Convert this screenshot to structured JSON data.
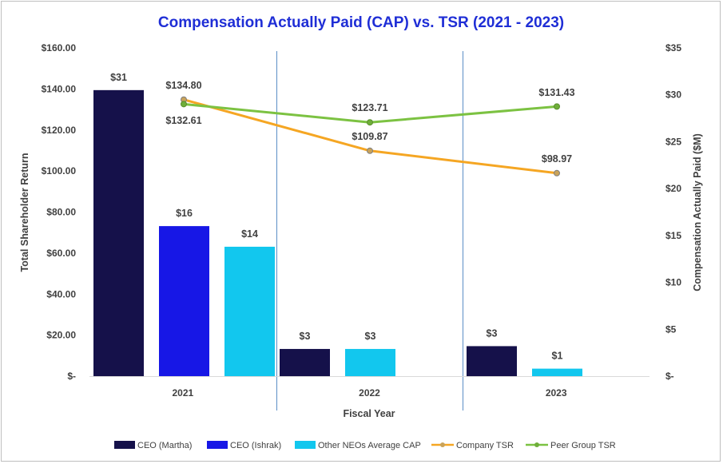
{
  "chart_data": {
    "type": "bar+line",
    "title": "Compensation Actually Paid (CAP) vs. TSR (2021 - 2023)",
    "xlabel": "Fiscal Year",
    "ylabel_left": "Total Shareholder Return",
    "ylabel_right": "Compensation Actually Paid ($M)",
    "categories": [
      "2021",
      "2022",
      "2023"
    ],
    "ylim_left": [
      0,
      160
    ],
    "ylim_right": [
      0,
      35
    ],
    "left_ticks": [
      {
        "value": 0,
        "label": "$-"
      },
      {
        "value": 20,
        "label": "$20.00"
      },
      {
        "value": 40,
        "label": "$40.00"
      },
      {
        "value": 60,
        "label": "$60.00"
      },
      {
        "value": 80,
        "label": "$80.00"
      },
      {
        "value": 100,
        "label": "$100.00"
      },
      {
        "value": 120,
        "label": "$120.00"
      },
      {
        "value": 140,
        "label": "$140.00"
      },
      {
        "value": 160,
        "label": "$160.00"
      }
    ],
    "right_ticks": [
      {
        "value": 0,
        "label": "$-"
      },
      {
        "value": 5,
        "label": "$5"
      },
      {
        "value": 10,
        "label": "$10"
      },
      {
        "value": 15,
        "label": "$15"
      },
      {
        "value": 20,
        "label": "$20"
      },
      {
        "value": 25,
        "label": "$25"
      },
      {
        "value": 30,
        "label": "$30"
      },
      {
        "value": 35,
        "label": "$35"
      }
    ],
    "bar_series": [
      {
        "name": "CEO (Martha)",
        "color": "#15114a",
        "bars": [
          {
            "category": 0,
            "value": 30.5,
            "label": "$31"
          },
          {
            "category": 1,
            "value": 2.9,
            "label": "$3"
          },
          {
            "category": 2,
            "value": 3.2,
            "label": "$3"
          }
        ]
      },
      {
        "name": "CEO (Ishrak)",
        "color": "#1717e6",
        "bars": [
          {
            "category": 0,
            "value": 16.0,
            "label": "$16"
          }
        ]
      },
      {
        "name": "Other NEOs Average CAP",
        "color": "#12c7ee",
        "bars": [
          {
            "category": 0,
            "value": 13.8,
            "label": "$14"
          },
          {
            "category": 1,
            "value": 2.9,
            "label": "$3"
          },
          {
            "category": 2,
            "value": 0.8,
            "label": "$1"
          }
        ]
      }
    ],
    "line_series": [
      {
        "name": "Company TSR",
        "color": "#f5a623",
        "values": [
          134.8,
          109.87,
          98.97
        ],
        "labels": [
          "$134.80",
          "$109.87",
          "$98.97"
        ]
      },
      {
        "name": "Peer Group TSR",
        "color": "#7cc242",
        "values": [
          132.61,
          123.71,
          131.43
        ],
        "labels": [
          "$132.61",
          "$123.71",
          "$131.43"
        ]
      }
    ],
    "legend": [
      "CEO (Martha)",
      "CEO (Ishrak)",
      "Other NEOs Average CAP",
      "Company TSR",
      "Peer Group TSR"
    ]
  }
}
